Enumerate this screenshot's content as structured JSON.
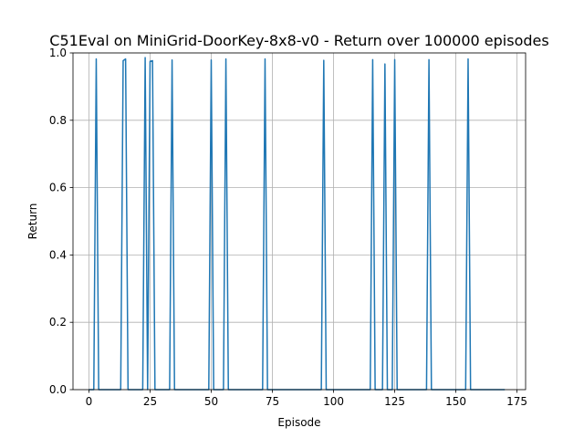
{
  "chart_data": {
    "type": "line",
    "title": "C51Eval on MiniGrid-DoorKey-8x8-v0 - Return over 100000 episodes",
    "xlabel": "Episode",
    "ylabel": "Return",
    "xlim": [
      -6.5,
      178.5
    ],
    "ylim": [
      0.0,
      1.0
    ],
    "xticks": [
      0,
      25,
      50,
      75,
      100,
      125,
      150,
      175
    ],
    "yticks": [
      0.0,
      0.2,
      0.4,
      0.6,
      0.8,
      1.0
    ],
    "xtick_labels": [
      "0",
      "25",
      "50",
      "75",
      "100",
      "125",
      "150",
      "175"
    ],
    "ytick_labels": [
      "0.0",
      "0.2",
      "0.4",
      "0.6",
      "0.8",
      "1.0"
    ],
    "grid": true,
    "colors": {
      "line": "#1f77b4",
      "grid": "#b0b0b0",
      "axes": "#000000"
    },
    "series": [
      {
        "x": [
          0,
          2,
          3,
          4,
          13,
          14,
          15,
          16,
          22,
          23,
          24,
          25,
          26,
          27,
          33,
          34,
          35,
          49,
          50,
          51,
          55,
          56,
          57,
          71,
          72,
          73,
          95,
          96,
          97,
          115,
          116,
          117,
          120,
          121,
          122,
          124,
          125,
          126,
          138,
          139,
          140,
          154,
          155,
          156,
          170
        ],
        "y": [
          0,
          0,
          0.982,
          0,
          0,
          0.977,
          0.982,
          0,
          0,
          0.986,
          0,
          0.975,
          0.977,
          0,
          0,
          0.979,
          0,
          0,
          0.979,
          0,
          0,
          0.982,
          0,
          0,
          0.982,
          0,
          0,
          0.978,
          0,
          0,
          0.98,
          0,
          0,
          0.967,
          0,
          0,
          0.98,
          0,
          0,
          0.98,
          0,
          0,
          0.982,
          0,
          0
        ]
      }
    ]
  }
}
